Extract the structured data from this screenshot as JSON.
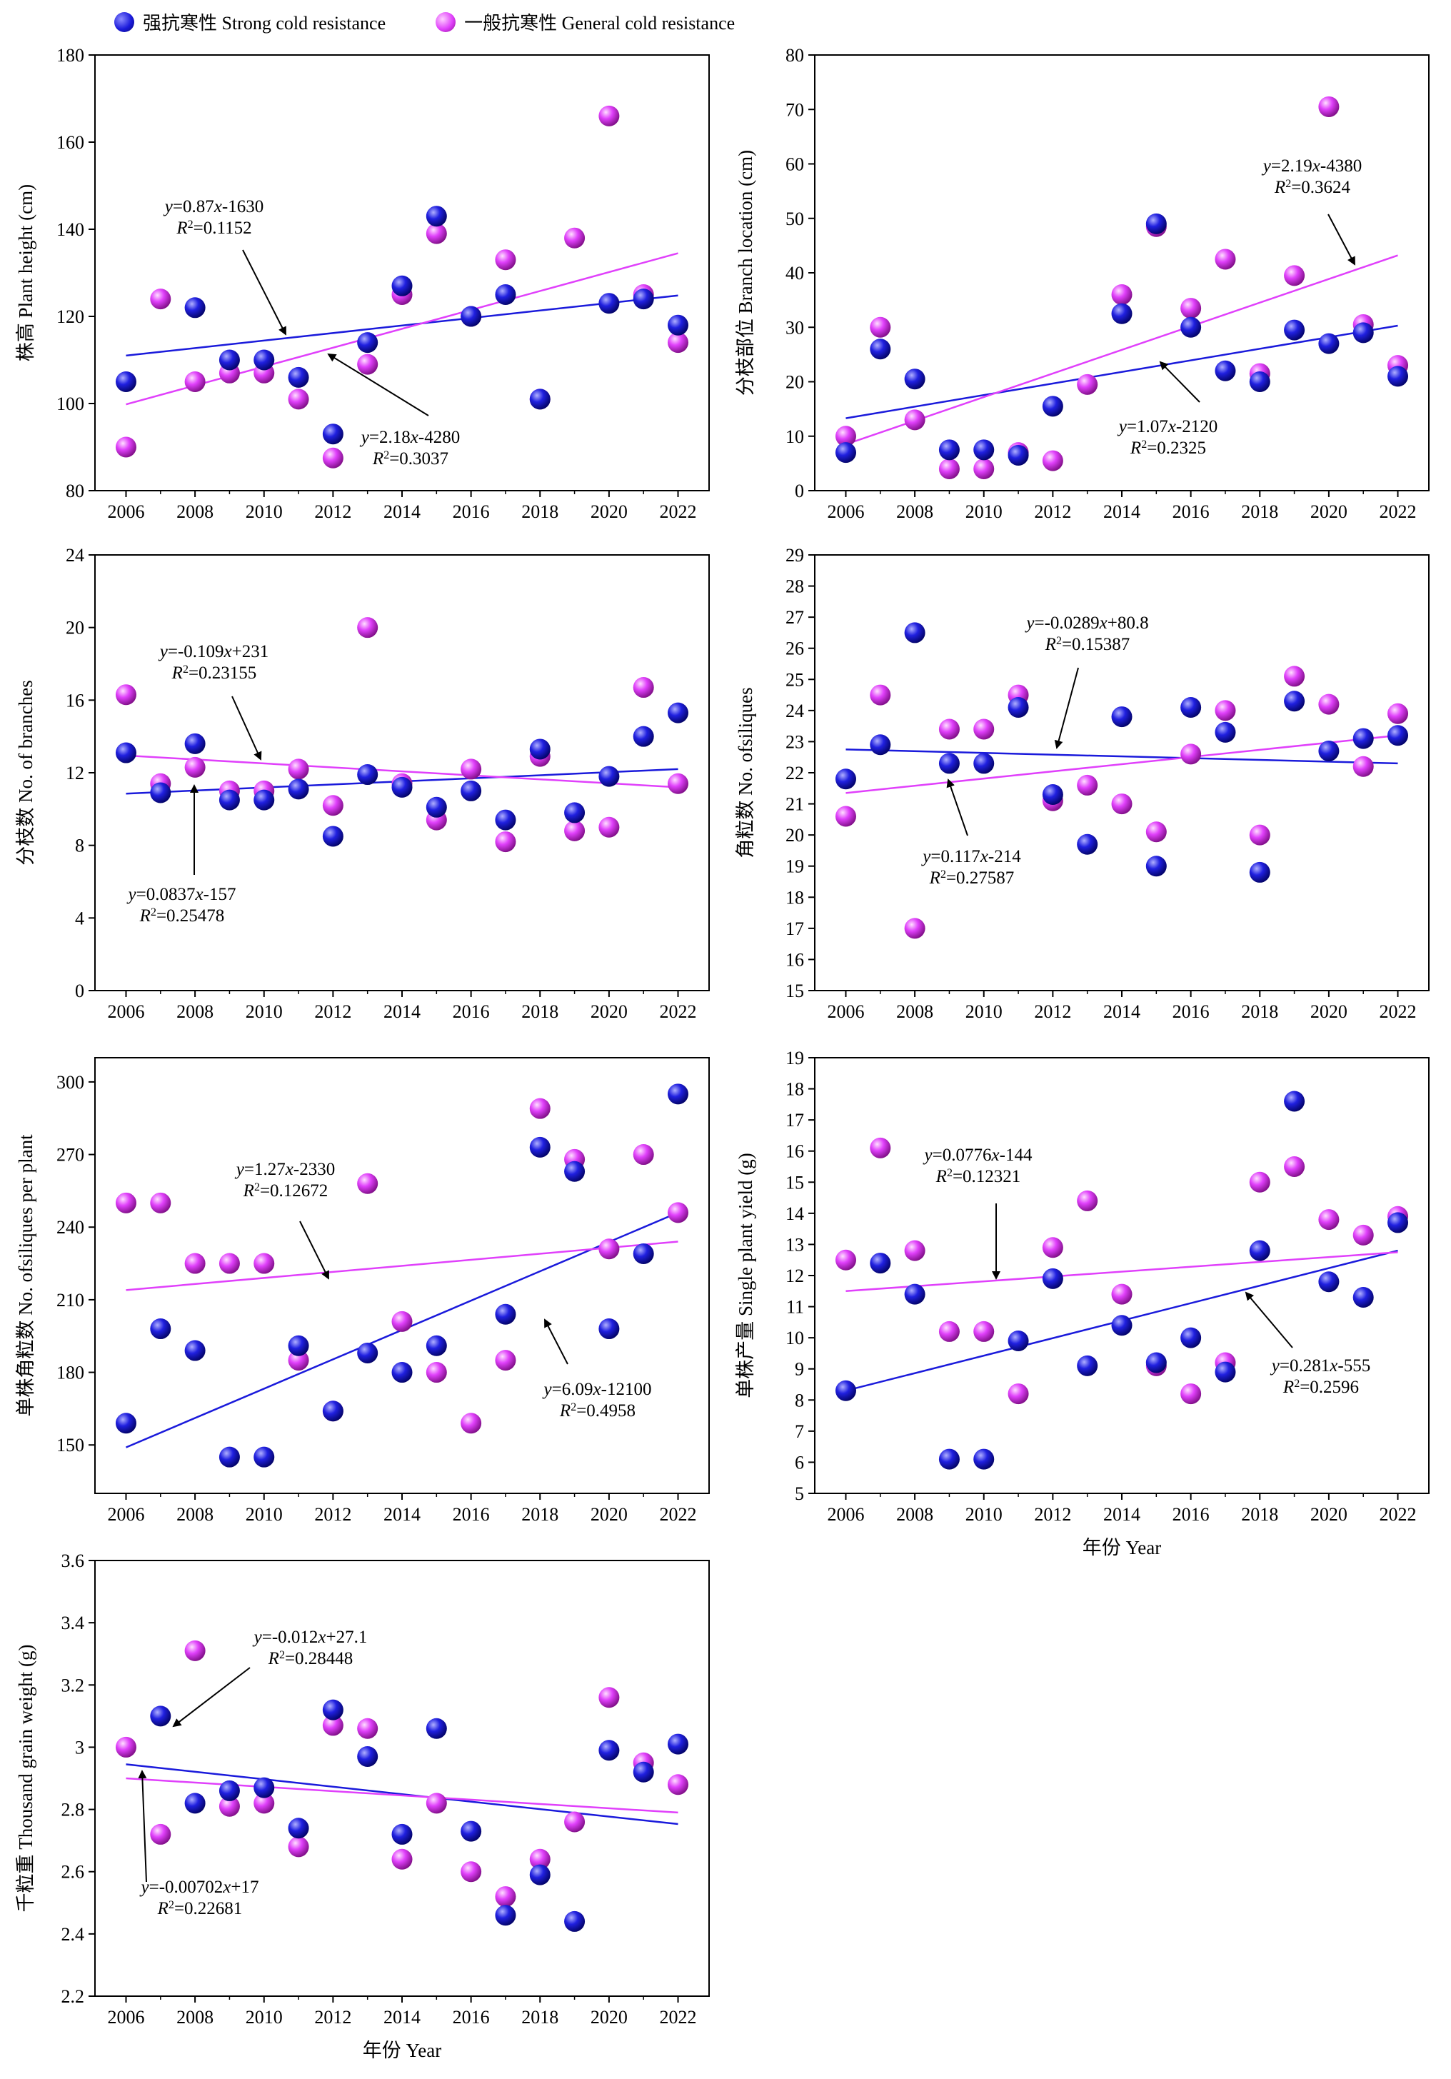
{
  "legend": {
    "strong_label": "强抗寒性 Strong cold resistance",
    "general_label": "一般抗寒性 General cold resistance"
  },
  "colors": {
    "strong": "#1a1adb",
    "general": "#e040fb"
  },
  "years": [
    2006,
    2007,
    2008,
    2009,
    2010,
    2011,
    2012,
    2013,
    2014,
    2015,
    2016,
    2017,
    2018,
    2019,
    2020,
    2021,
    2022
  ],
  "chart_data": [
    {
      "type": "scatter",
      "ylabel": "株高 Plant height (cm)",
      "xlabel": "",
      "xlim": [
        2005.1,
        2022.9
      ],
      "ylim": [
        80,
        180
      ],
      "xticks": [
        2006,
        2008,
        2010,
        2012,
        2014,
        2016,
        2018,
        2020,
        2022
      ],
      "yticks": [
        80,
        100,
        120,
        140,
        160,
        180
      ],
      "series": [
        {
          "name": "强抗寒性 Strong cold resistance",
          "values": [
            105,
            null,
            122,
            110,
            110,
            106,
            93,
            114,
            127,
            143,
            120,
            125,
            101,
            null,
            123,
            124,
            118
          ]
        },
        {
          "name": "一般抗寒性 General cold resistance",
          "values": [
            90,
            124,
            105,
            107,
            107,
            101,
            87.5,
            109,
            125,
            139,
            120,
            133,
            101,
            138,
            166,
            125,
            114
          ]
        }
      ],
      "trendlines": [
        {
          "series": "strong",
          "slope": 0.87,
          "intercept": -1630,
          "x": [
            2006,
            2022
          ],
          "y": [
            111,
            124.8
          ]
        },
        {
          "series": "general",
          "slope": 2.18,
          "intercept": -4280,
          "x": [
            2006,
            2022
          ],
          "y": [
            99.8,
            134.5
          ]
        }
      ],
      "annotations": [
        {
          "eq": "y=0.87x-1630",
          "r2": "R2=0.1152",
          "series": "strong"
        },
        {
          "eq": "y=2.18x-4280",
          "r2": "R2=0.3037",
          "series": "general"
        }
      ]
    },
    {
      "type": "scatter",
      "ylabel": "分枝部位 Branch location (cm)",
      "xlabel": "",
      "xlim": [
        2005.1,
        2022.9
      ],
      "ylim": [
        0,
        80
      ],
      "xticks": [
        2006,
        2008,
        2010,
        2012,
        2014,
        2016,
        2018,
        2020,
        2022
      ],
      "yticks": [
        0,
        10,
        20,
        30,
        40,
        50,
        60,
        70,
        80
      ],
      "series": [
        {
          "name": "强抗寒性 Strong cold resistance",
          "values": [
            7,
            26,
            20.5,
            7.5,
            7.5,
            6.5,
            15.5,
            null,
            32.5,
            49,
            30,
            22,
            20,
            29.5,
            27,
            29,
            21
          ]
        },
        {
          "name": "一般抗寒性 General cold resistance",
          "values": [
            10,
            30,
            13,
            4,
            4,
            7,
            5.5,
            19.5,
            36,
            48.5,
            33.5,
            42.5,
            21.5,
            39.5,
            70.5,
            30.5,
            23
          ]
        }
      ],
      "trendlines": [
        {
          "series": "strong",
          "slope": 1.07,
          "intercept": -2120,
          "x": [
            2006,
            2022
          ],
          "y": [
            13.3,
            30.3
          ]
        },
        {
          "series": "general",
          "slope": 2.19,
          "intercept": -4380,
          "x": [
            2006,
            2022
          ],
          "y": [
            8.5,
            43.2
          ]
        }
      ],
      "annotations": [
        {
          "eq": "y=2.19x-4380",
          "r2": "R2=0.3624",
          "series": "general"
        },
        {
          "eq": "y=1.07x-2120",
          "r2": "R2=0.2325",
          "series": "strong"
        }
      ]
    },
    {
      "type": "scatter",
      "ylabel": "分枝数 No. of branches",
      "xlabel": "",
      "xlim": [
        2005.1,
        2022.9
      ],
      "ylim": [
        0,
        24
      ],
      "xticks": [
        2006,
        2008,
        2010,
        2012,
        2014,
        2016,
        2018,
        2020,
        2022
      ],
      "yticks": [
        0,
        4,
        8,
        12,
        16,
        20,
        24
      ],
      "series": [
        {
          "name": "强抗寒性 Strong cold resistance",
          "values": [
            13.1,
            10.9,
            13.6,
            10.5,
            10.5,
            11.1,
            8.5,
            11.9,
            11.2,
            10.1,
            11,
            9.4,
            13.3,
            9.8,
            11.8,
            14,
            15.3
          ]
        },
        {
          "name": "一般抗寒性 General cold resistance",
          "values": [
            16.3,
            11.4,
            12.3,
            11,
            11,
            12.2,
            10.2,
            20,
            11.4,
            9.4,
            12.2,
            8.2,
            12.9,
            8.8,
            9,
            16.7,
            11.4
          ]
        }
      ],
      "trendlines": [
        {
          "series": "strong",
          "slope": 0.0837,
          "intercept": -157,
          "x": [
            2006,
            2022
          ],
          "y": [
            10.85,
            12.2
          ]
        },
        {
          "series": "general",
          "slope": -0.109,
          "intercept": 231,
          "x": [
            2006,
            2022
          ],
          "y": [
            12.95,
            11.2
          ]
        }
      ],
      "annotations": [
        {
          "eq": "y=-0.109x+231",
          "r2": "R2=0.23155",
          "series": "general"
        },
        {
          "eq": "y=0.0837x-157",
          "r2": "R2=0.25478",
          "series": "strong"
        }
      ]
    },
    {
      "type": "scatter",
      "ylabel": "角粒数 No. ofsiliques",
      "xlabel": "",
      "xlim": [
        2005.1,
        2022.9
      ],
      "ylim": [
        15,
        29
      ],
      "xticks": [
        2006,
        2008,
        2010,
        2012,
        2014,
        2016,
        2018,
        2020,
        2022
      ],
      "yticks": [
        15,
        16,
        17,
        18,
        19,
        20,
        21,
        22,
        23,
        24,
        25,
        26,
        27,
        28,
        29
      ],
      "series": [
        {
          "name": "强抗寒性 Strong cold resistance",
          "values": [
            21.8,
            22.9,
            26.5,
            22.3,
            22.3,
            24.1,
            21.3,
            19.7,
            23.8,
            19,
            24.1,
            23.3,
            18.8,
            24.3,
            22.7,
            23.1,
            23.2
          ]
        },
        {
          "name": "一般抗寒性 General cold resistance",
          "values": [
            20.6,
            24.5,
            17,
            23.4,
            23.4,
            24.5,
            21.1,
            21.6,
            21,
            20.1,
            22.6,
            24,
            20,
            25.1,
            24.2,
            22.2,
            23.9
          ]
        }
      ],
      "trendlines": [
        {
          "series": "strong",
          "slope": -0.0289,
          "intercept": 80.8,
          "x": [
            2006,
            2022
          ],
          "y": [
            22.75,
            22.3
          ]
        },
        {
          "series": "general",
          "slope": 0.117,
          "intercept": -214,
          "x": [
            2006,
            2022
          ],
          "y": [
            21.35,
            23.2
          ]
        }
      ],
      "annotations": [
        {
          "eq": "y=-0.0289x+80.8",
          "r2": "R2=0.15387",
          "series": "strong"
        },
        {
          "eq": "y=0.117x-214",
          "r2": "R2=0.27587",
          "series": "general"
        }
      ]
    },
    {
      "type": "scatter",
      "ylabel": "单株角粒数 No. ofsiliques per plant",
      "xlabel": "",
      "xlim": [
        2005.1,
        2022.9
      ],
      "ylim": [
        130,
        310
      ],
      "xticks": [
        2006,
        2008,
        2010,
        2012,
        2014,
        2016,
        2018,
        2020,
        2022
      ],
      "yticks": [
        150,
        180,
        210,
        240,
        270,
        300
      ],
      "series": [
        {
          "name": "强抗寒性 Strong cold resistance",
          "values": [
            159,
            198,
            189,
            145,
            145,
            191,
            164,
            188,
            180,
            191,
            null,
            204,
            273,
            263,
            198,
            229,
            295
          ]
        },
        {
          "name": "一般抗寒性 General cold resistance",
          "values": [
            250,
            250,
            225,
            225,
            225,
            185,
            164,
            258,
            201,
            180,
            159,
            185,
            289,
            268,
            231,
            270,
            246
          ]
        }
      ],
      "trendlines": [
        {
          "series": "strong",
          "slope": 6.09,
          "intercept": -12100,
          "x": [
            2006,
            2022
          ],
          "y": [
            149,
            246
          ]
        },
        {
          "series": "general",
          "slope": 1.27,
          "intercept": -2330,
          "x": [
            2006,
            2022
          ],
          "y": [
            214,
            234
          ]
        }
      ],
      "annotations": [
        {
          "eq": "y=1.27x-2330",
          "r2": "R2=0.12672",
          "series": "general"
        },
        {
          "eq": "y=6.09x-12100",
          "r2": "R2=0.4958",
          "series": "strong"
        }
      ]
    },
    {
      "type": "scatter",
      "ylabel": "单株产量 Single plant yield (g)",
      "xlabel": "年份 Year",
      "xlim": [
        2005.1,
        2022.9
      ],
      "ylim": [
        5,
        19
      ],
      "xticks": [
        2006,
        2008,
        2010,
        2012,
        2014,
        2016,
        2018,
        2020,
        2022
      ],
      "yticks": [
        5,
        6,
        7,
        8,
        9,
        10,
        11,
        12,
        13,
        14,
        15,
        16,
        17,
        18,
        19
      ],
      "series": [
        {
          "name": "强抗寒性 Strong cold resistance",
          "values": [
            8.3,
            12.4,
            11.4,
            6.1,
            6.1,
            9.9,
            11.9,
            9.1,
            10.4,
            9.2,
            10,
            8.9,
            12.8,
            17.6,
            11.8,
            11.3,
            13.7
          ]
        },
        {
          "name": "一般抗寒性 General cold resistance",
          "values": [
            12.5,
            16.1,
            12.8,
            10.2,
            10.2,
            8.2,
            12.9,
            14.4,
            11.4,
            9.1,
            8.2,
            9.2,
            15,
            15.5,
            13.8,
            13.3,
            13.9
          ]
        }
      ],
      "trendlines": [
        {
          "series": "strong",
          "slope": 0.281,
          "intercept": -555,
          "x": [
            2006,
            2022
          ],
          "y": [
            8.3,
            12.8
          ]
        },
        {
          "series": "general",
          "slope": 0.0776,
          "intercept": -144,
          "x": [
            2006,
            2022
          ],
          "y": [
            11.5,
            12.75
          ]
        }
      ],
      "annotations": [
        {
          "eq": "y=0.0776x-144",
          "r2": "R2=0.12321",
          "series": "general"
        },
        {
          "eq": "y=0.281x-555",
          "r2": "R2=0.2596",
          "series": "strong"
        }
      ]
    },
    {
      "type": "scatter",
      "ylabel": "千粒重 Thousand grain weight (g)",
      "xlabel": "年份 Year",
      "xlim": [
        2005.1,
        2022.9
      ],
      "ylim": [
        2.2,
        3.6
      ],
      "xticks": [
        2006,
        2008,
        2010,
        2012,
        2014,
        2016,
        2018,
        2020,
        2022
      ],
      "yticks": [
        2.2,
        2.4,
        2.6,
        2.8,
        3.0,
        3.2,
        3.4,
        3.6
      ],
      "series": [
        {
          "name": "强抗寒性 Strong cold resistance",
          "values": [
            null,
            3.1,
            2.82,
            2.86,
            2.87,
            2.74,
            3.12,
            2.97,
            2.72,
            3.06,
            2.73,
            2.46,
            2.59,
            2.44,
            2.99,
            2.92,
            3.01
          ]
        },
        {
          "name": "一般抗寒性 General cold resistance",
          "values": [
            3.0,
            2.72,
            3.31,
            2.81,
            2.82,
            2.68,
            3.07,
            3.06,
            2.64,
            2.82,
            2.6,
            2.52,
            2.64,
            2.76,
            3.16,
            2.95,
            2.88
          ]
        }
      ],
      "trendlines": [
        {
          "series": "strong",
          "slope": -0.012,
          "intercept": 27.1,
          "x": [
            2006,
            2022
          ],
          "y": [
            2.945,
            2.753
          ]
        },
        {
          "series": "general",
          "slope": -0.00702,
          "intercept": 17,
          "x": [
            2006,
            2022
          ],
          "y": [
            2.9,
            2.79
          ]
        }
      ],
      "annotations": [
        {
          "eq": "y=-0.012x+27.1",
          "r2": "R2=0.28448",
          "series": "strong"
        },
        {
          "eq": "y=-0.00702x+17",
          "r2": "R2=0.22681",
          "series": "general"
        }
      ]
    }
  ]
}
